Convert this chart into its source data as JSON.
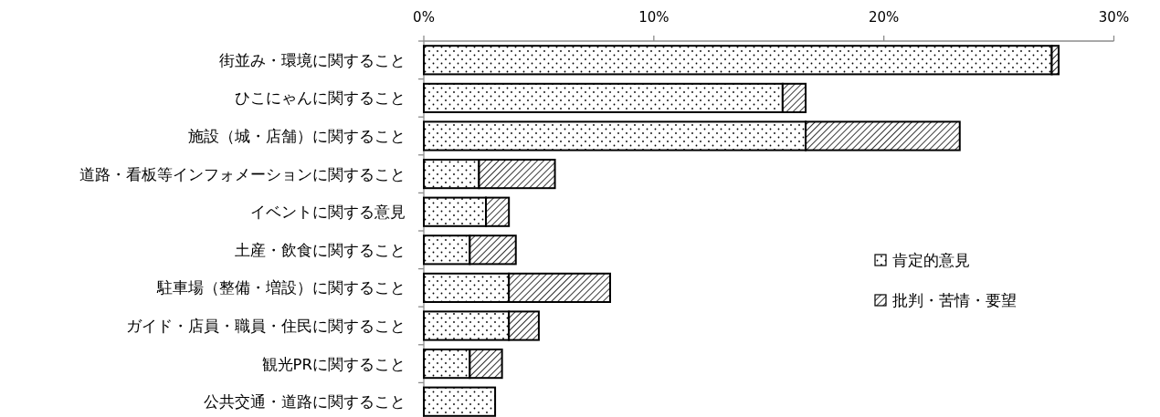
{
  "chart_data": {
    "type": "bar",
    "orientation": "horizontal",
    "stacked": true,
    "categories": [
      "街並み・環境に関すること",
      "ひこにゃんに関すること",
      "施設（城・店舗）に関すること",
      "道路・看板等インフォメーションに関すること",
      "イベントに関する意見",
      "土産・飲食に関すること",
      "駐車場（整備・増設）に関すること",
      "ガイド・店員・職員・住民に関すること",
      "観光PRに関すること",
      "公共交通・道路に関すること"
    ],
    "series": [
      {
        "name": "肯定的意見",
        "color": "#000000",
        "values": [
          27.3,
          15.6,
          16.6,
          2.4,
          2.7,
          2.0,
          3.7,
          3.7,
          2.0,
          3.1
        ]
      },
      {
        "name": "批判・苦情・要望",
        "color": "#000000",
        "values": [
          0.3,
          1.0,
          6.7,
          3.3,
          1.0,
          2.0,
          4.4,
          1.3,
          1.4,
          0
        ]
      }
    ],
    "xlim": [
      0,
      30
    ],
    "xticks": [
      {
        "value": 0,
        "label": "0%"
      },
      {
        "value": 10,
        "label": "10%"
      },
      {
        "value": 20,
        "label": "20%"
      },
      {
        "value": 30,
        "label": "30%"
      }
    ],
    "legend": "right",
    "grid": false
  }
}
